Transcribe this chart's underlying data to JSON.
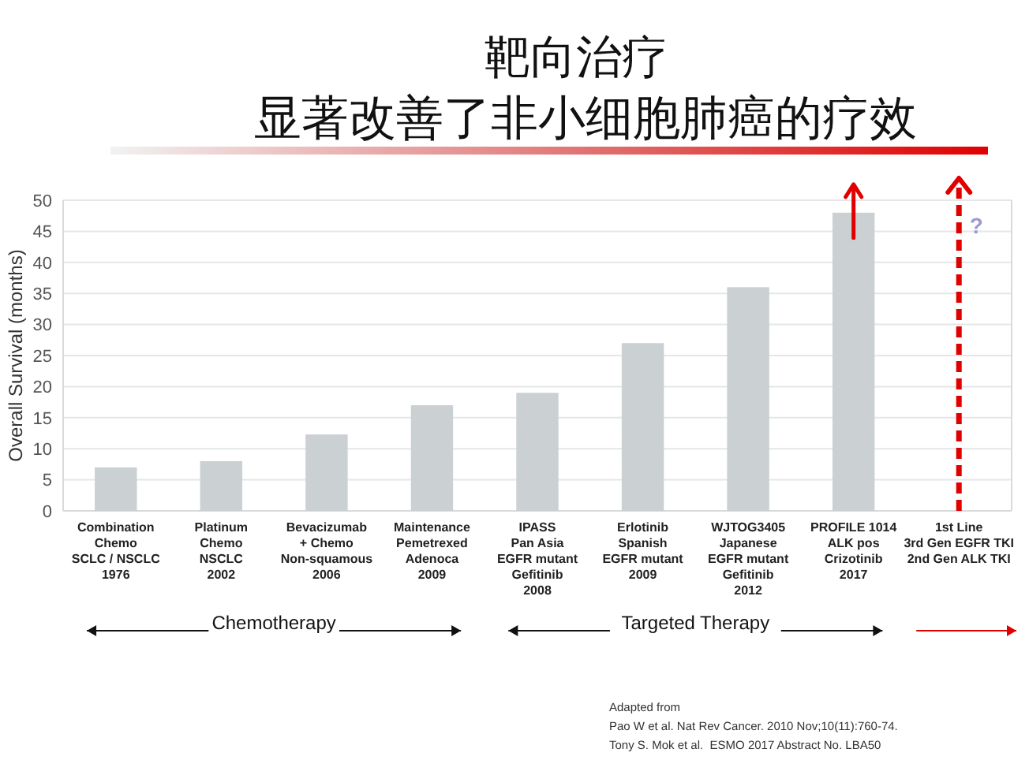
{
  "chart_data": {
    "type": "bar",
    "title": "靶向治疗",
    "subtitle": "显著改善了非小细胞肺癌的疗效",
    "ylabel": "Overall Survival (months)",
    "categories": [
      "Combination\nChemo\nSCLC / NSCLC\n1976",
      "Platinum\nChemo\nNSCLC\n2002",
      "Bevacizumab\n+ Chemo\nNon-squamous\n2006",
      "Maintenance\nPemetrexed\nAdenoca\n2009",
      "IPASS\nPan Asia\nEGFR mutant\nGefitinib\n2008",
      "Erlotinib\nSpanish\nEGFR mutant\n2009",
      "WJTOG3405\nJapanese\nEGFR mutant\nGefitinib\n2012",
      "PROFILE 1014\nALK pos\nCrizotinib\n2017",
      "1st Line\n3rd Gen EGFR TKI\n2nd Gen ALK TKI"
    ],
    "values": [
      7,
      8,
      12.3,
      17,
      19,
      27,
      36,
      48,
      null
    ],
    "color": "#cbd0d3",
    "ylim": [
      0,
      50
    ],
    "yticks": [
      0,
      5,
      10,
      15,
      20,
      25,
      30,
      35,
      40,
      45,
      50
    ],
    "grid": "y",
    "ref_lines": [
      {
        "axis": "x",
        "value": "1st Line\n3rd Gen EGFR TKI\n2nd Gen ALK TKI",
        "color": "#e00000",
        "line_style": "dashed"
      }
    ],
    "annotations": [
      "Chemotherapy",
      "Targeted Therapy",
      "?",
      "Adapted from",
      "Pao W et al. Nat Rev Cancer. 2010 Nov;10(11):760-74.",
      "Tony S. Mok et al.  ESMO 2017 Abstract No. LBA50"
    ]
  }
}
